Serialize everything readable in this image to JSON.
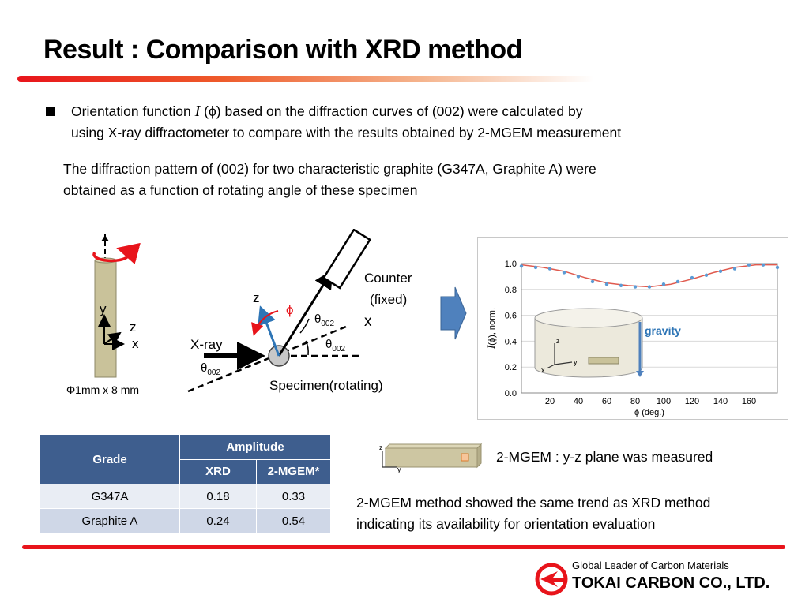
{
  "title": "Result : Comparison with XRD method",
  "bullet": {
    "pre": "Orientation function ",
    "symbol": "I",
    "post": " (ϕ) based on the diffraction curves of (002) were calculated by",
    "line2": "using X-ray diffractometer to compare with the results obtained by 2-MGEM measurement"
  },
  "paragraph": {
    "line1": "The diffraction pattern of (002) for two characteristic graphite (G347A, Graphite A) were",
    "line2": "obtained as a function of rotating angle of these specimen"
  },
  "specimen": {
    "axis_y": "y",
    "axis_z": "z",
    "axis_x": "x",
    "size": "Φ1mm x 8 mm"
  },
  "geometry": {
    "z": "z",
    "phi": "ϕ",
    "theta": "θ",
    "sub": "002",
    "x": "x",
    "xray": "X-ray",
    "counter_line1": "Counter",
    "counter_line2": "(fixed)",
    "specimen": "Specimen(rotating)"
  },
  "chart_inset": {
    "gravity": "gravity",
    "z": "z",
    "y": "y",
    "x": "x"
  },
  "chart_data": {
    "type": "scatter",
    "title": "",
    "xlabel": "ϕ (deg.)",
    "ylabel_symbol": "I",
    "ylabel": "(ϕ), norm.",
    "xlim": [
      0,
      180
    ],
    "ylim": [
      0,
      1.0
    ],
    "x_ticks": [
      "20",
      "40",
      "60",
      "80",
      "100",
      "120",
      "140",
      "160"
    ],
    "y_ticks": [
      "0.0",
      "0.2",
      "0.4",
      "0.6",
      "0.8",
      "1.0"
    ],
    "grid": "horizontal",
    "series": [
      {
        "kind": "points",
        "color": "#5b9bd5",
        "x": [
          0,
          10,
          20,
          30,
          40,
          50,
          60,
          70,
          80,
          90,
          100,
          110,
          120,
          130,
          140,
          150,
          160,
          170,
          180
        ],
        "y": [
          0.98,
          0.97,
          0.96,
          0.93,
          0.9,
          0.86,
          0.84,
          0.83,
          0.82,
          0.82,
          0.84,
          0.86,
          0.89,
          0.91,
          0.94,
          0.96,
          0.99,
          0.99,
          0.97
        ]
      },
      {
        "kind": "fit",
        "color": "#e05a4e",
        "x": [
          0,
          15,
          30,
          45,
          60,
          75,
          90,
          105,
          120,
          135,
          150,
          165,
          180
        ],
        "y": [
          0.99,
          0.97,
          0.94,
          0.89,
          0.85,
          0.83,
          0.82,
          0.84,
          0.88,
          0.93,
          0.97,
          0.99,
          0.99
        ]
      }
    ]
  },
  "table": {
    "header_grade": "Grade",
    "header_amplitude": "Amplitude",
    "header_xrd": "XRD",
    "header_mgem": "2-MGEM*",
    "rows": [
      {
        "grade": "G347A",
        "xrd": "0.18",
        "mgem": "0.33"
      },
      {
        "grade": "Graphite A",
        "xrd": "0.24",
        "mgem": "0.54"
      }
    ]
  },
  "mgem_note": {
    "z": "z",
    "y": "y",
    "label": "2-MGEM : y-z plane was measured"
  },
  "conclusion": {
    "line1": "2-MGEM method showed the same trend as XRD method",
    "line2": "indicating its availability for orientation evaluation"
  },
  "footer": {
    "tagline": "Global Leader of Carbon Materials",
    "company": "TOKAI CARBON CO., LTD."
  },
  "colors": {
    "brand_red": "#e8141b",
    "table_header": "#3e5e8e",
    "rod": "#c9c29a"
  }
}
